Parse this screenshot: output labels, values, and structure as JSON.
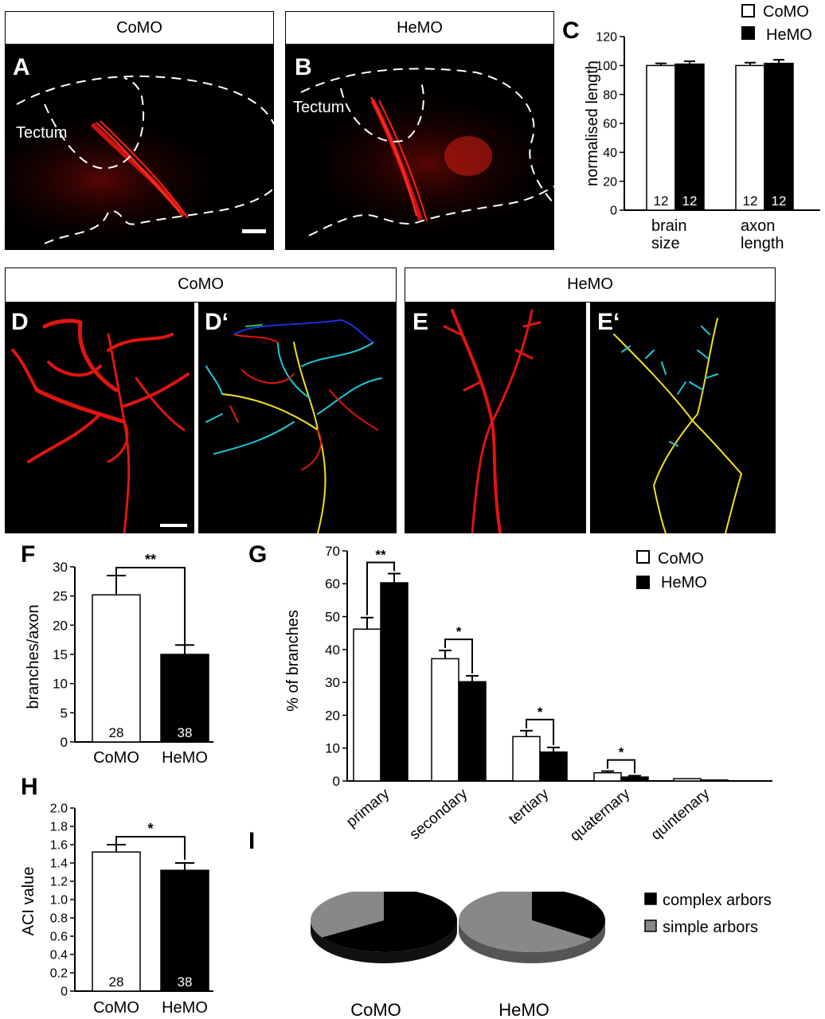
{
  "panels": {
    "A": {
      "letter": "A",
      "header": "CoMO",
      "region_label": "Tectum"
    },
    "B": {
      "letter": "B",
      "header": "HeMO",
      "region_label": "Tectum"
    },
    "C": {
      "letter": "C"
    },
    "DE_headers": {
      "left": "CoMO",
      "right": "HeMO"
    },
    "D": {
      "letter": "D"
    },
    "D2": {
      "letter": "D‘"
    },
    "E": {
      "letter": "E"
    },
    "E2": {
      "letter": "E‘"
    },
    "F": {
      "letter": "F"
    },
    "G": {
      "letter": "G"
    },
    "H": {
      "letter": "H"
    },
    "I": {
      "letter": "I"
    }
  },
  "legend_groups": {
    "comp": "CoMO",
    "exp": "HeMO"
  },
  "pie_legend": {
    "complex": "complex arbors",
    "simple": "simple arbors"
  },
  "pie_labels": {
    "left": "CoMO",
    "right": "HeMO"
  },
  "colors": {
    "complex": "#000000",
    "simple": "#888888",
    "bar_como": "#ffffff",
    "bar_hemo": "#000000",
    "axon_red": "#e0150f"
  },
  "chart_data": [
    {
      "id": "C",
      "type": "bar",
      "ylabel": "normalised length",
      "ylim": [
        0,
        120
      ],
      "yticks": [
        0,
        20,
        40,
        60,
        80,
        100,
        120
      ],
      "categories": [
        [
          "brain",
          "size"
        ],
        [
          "axon",
          "length"
        ]
      ],
      "series": [
        {
          "name": "CoMO",
          "values": [
            100,
            100
          ],
          "errors": [
            1.5,
            2
          ],
          "n": [
            "12",
            "12"
          ]
        },
        {
          "name": "HeMO",
          "values": [
            101,
            101.5
          ],
          "errors": [
            2,
            2.5
          ],
          "n": [
            "12",
            "12"
          ]
        }
      ]
    },
    {
      "id": "F",
      "type": "bar",
      "ylabel": "branches/axon",
      "ylim": [
        0,
        30
      ],
      "yticks": [
        0,
        5,
        10,
        15,
        20,
        25,
        30
      ],
      "categories": [
        "CoMO",
        "HeMO"
      ],
      "values": [
        25.2,
        15
      ],
      "errors": [
        3.3,
        1.6
      ],
      "n": [
        "28",
        "38"
      ],
      "significance": "**"
    },
    {
      "id": "G",
      "type": "bar",
      "ylabel": "% of branches",
      "ylim": [
        0,
        70
      ],
      "yticks": [
        0,
        10,
        20,
        30,
        40,
        50,
        60,
        70
      ],
      "categories": [
        "primary",
        "secondary",
        "tertiary",
        "quaternary",
        "quintenary"
      ],
      "series": [
        {
          "name": "CoMO",
          "values": [
            46.2,
            37.2,
            13.5,
            2.5,
            0.7
          ],
          "errors": [
            3.5,
            2.5,
            1.8,
            0.5,
            0.2
          ]
        },
        {
          "name": "HeMO",
          "values": [
            60.3,
            30.2,
            8.8,
            1.2,
            0.3
          ],
          "errors": [
            2.8,
            1.8,
            1.4,
            0.4,
            0.1
          ]
        }
      ],
      "significance": [
        "**",
        "*",
        "*",
        "*",
        ""
      ]
    },
    {
      "id": "H",
      "type": "bar",
      "ylabel": "ACI value",
      "ylim": [
        0,
        2.0
      ],
      "yticks": [
        "0",
        "0.2",
        "0.4",
        "0.6",
        "0.8",
        "1.0",
        "1.2",
        "1.4",
        "1.6",
        "1.8",
        "2.0"
      ],
      "categories": [
        "CoMO",
        "HeMO"
      ],
      "values": [
        1.52,
        1.32
      ],
      "errors": [
        0.08,
        0.08
      ],
      "n": [
        "28",
        "38"
      ],
      "significance": "*"
    },
    {
      "id": "I",
      "type": "pie",
      "groups": [
        {
          "name": "CoMO",
          "complex": 0.66,
          "simple": 0.34
        },
        {
          "name": "HeMO",
          "complex": 0.35,
          "simple": 0.65
        }
      ]
    }
  ]
}
